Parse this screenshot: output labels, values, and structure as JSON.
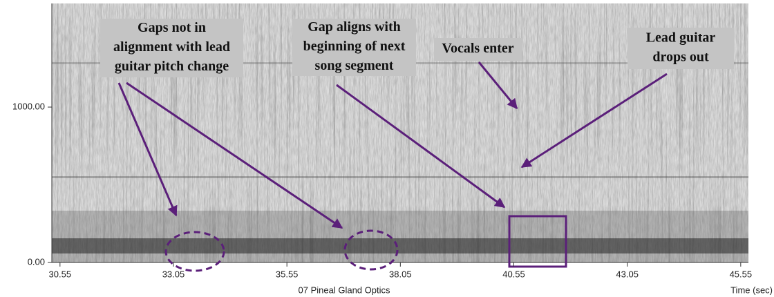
{
  "chart_data": {
    "type": "spectrogram",
    "xlabel": "Time (sec)",
    "subtitle": "07 Pineal Gland Optics",
    "xlim": [
      30.37,
      45.72
    ],
    "xticks": [
      30.55,
      33.05,
      35.55,
      38.05,
      40.55,
      43.05,
      45.55
    ],
    "ylim": [
      0,
      1667
    ],
    "yticks": [
      {
        "value": 0,
        "label": "0.00"
      },
      {
        "value": 1000,
        "label": "1000.00"
      }
    ],
    "annotations": [
      {
        "lines": [
          "Gaps not in",
          "alignment with lead",
          "guitar pitch change"
        ]
      },
      {
        "lines": [
          "Gap aligns with",
          "beginning of next",
          "song segment"
        ]
      },
      {
        "lines": [
          "Vocals enter"
        ]
      },
      {
        "lines": [
          "Lead guitar",
          "drops out"
        ]
      }
    ]
  }
}
